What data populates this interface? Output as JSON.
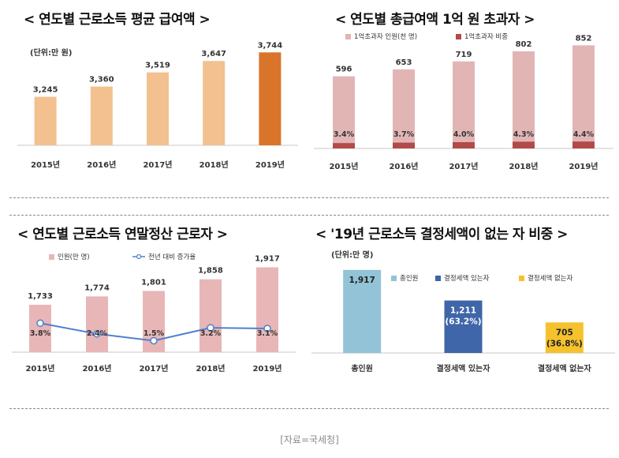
{
  "source": "[자료=국세청]",
  "chart_data": [
    {
      "type": "bar",
      "title": "< 연도별 근로소득 평균 급여액 >",
      "unit": "(단위:만 원)",
      "categories": [
        "2015년",
        "2016년",
        "2017년",
        "2018년",
        "2019년"
      ],
      "values": [
        3245,
        3360,
        3519,
        3647,
        3744
      ],
      "value_labels": [
        "3,245",
        "3,360",
        "3,519",
        "3,647",
        "3,744"
      ],
      "colors": {
        "normal": "#f2c18f",
        "highlight": "#d9752b"
      },
      "highlight_index": 4,
      "ylim": [
        2700,
        3800
      ]
    },
    {
      "type": "bar",
      "title": "< 연도별 총급여액 1억 원 초과자 >",
      "categories": [
        "2015년",
        "2016년",
        "2017년",
        "2018년",
        "2019년"
      ],
      "series": [
        {
          "name": "1억초과자 인원(천 명)",
          "values": [
            596,
            653,
            719,
            802,
            852
          ],
          "color": "#e2b5b5"
        },
        {
          "name": "1억초과자 비중",
          "values": [
            3.4,
            3.7,
            4.0,
            4.3,
            4.4
          ],
          "color": "#b24a4a"
        }
      ],
      "value_labels": [
        "596",
        "653",
        "719",
        "802",
        "852"
      ],
      "pct_labels": [
        "3.4%",
        "3.7%",
        "4.0%",
        "4.3%",
        "4.4%"
      ],
      "ylim": [
        0,
        900
      ]
    },
    {
      "type": "bar",
      "title": "< 연도별 근로소득 연말정산 근로자 >",
      "categories": [
        "2015년",
        "2016년",
        "2017년",
        "2018년",
        "2019년"
      ],
      "series": [
        {
          "name": "인원(만 명)",
          "values": [
            1733,
            1774,
            1801,
            1858,
            1917
          ],
          "color": "#e8b6b6"
        },
        {
          "name": "전년 대비 증가율",
          "values": [
            3.8,
            2.4,
            1.5,
            3.2,
            3.1
          ],
          "color": "#4f7fd1"
        }
      ],
      "value_labels": [
        "1,733",
        "1,774",
        "1,801",
        "1,858",
        "1,917"
      ],
      "pct_labels": [
        "3.8%",
        "2.4%",
        "1.5%",
        "3.2%",
        "3.1%"
      ],
      "ylim": [
        1500,
        1950
      ],
      "line_ylim": [
        0,
        12
      ]
    },
    {
      "type": "bar",
      "title": "< '19년 근로소득 결정세액이 없는 자 비중 >",
      "unit": "(단위:만 명)",
      "categories": [
        "총인원",
        "결정세액 있는자",
        "결정세액 없는자"
      ],
      "values": [
        1917,
        1211,
        705
      ],
      "value_labels": [
        "1,917",
        "1,211",
        "705"
      ],
      "pct_labels": [
        "",
        "(63.2%)",
        "(36.8%)"
      ],
      "legend": [
        "총인원",
        "결정세액 있는자",
        "결정세액 없는자"
      ],
      "colors": [
        "#92c3d6",
        "#3f66a8",
        "#f5c22e"
      ],
      "ylim": [
        0,
        1950
      ]
    }
  ]
}
